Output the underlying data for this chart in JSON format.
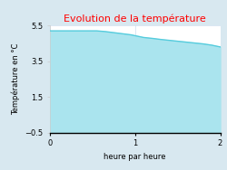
{
  "title": "Evolution de la température",
  "xlabel": "heure par heure",
  "ylabel": "Température en °C",
  "xlim": [
    0,
    2
  ],
  "ylim": [
    -0.5,
    5.5
  ],
  "xticks": [
    0,
    1,
    2
  ],
  "yticks": [
    -0.5,
    1.5,
    3.5,
    5.5
  ],
  "title_color": "#ff0000",
  "line_color": "#55ccdd",
  "fill_color": "#aae4ee",
  "background_color": "#d8e8f0",
  "plot_bg_color": "#ffffff",
  "x_data": [
    0,
    0.55,
    0.6,
    0.65,
    0.7,
    0.75,
    0.8,
    0.85,
    0.9,
    0.95,
    1.0,
    1.05,
    1.1,
    1.2,
    1.3,
    1.4,
    1.5,
    1.6,
    1.7,
    1.8,
    1.9,
    2.0
  ],
  "y_data": [
    5.2,
    5.2,
    5.18,
    5.16,
    5.13,
    5.1,
    5.07,
    5.04,
    5.01,
    4.98,
    4.93,
    4.88,
    4.83,
    4.78,
    4.72,
    4.67,
    4.62,
    4.57,
    4.52,
    4.47,
    4.4,
    4.3
  ],
  "fill_baseline": -0.5,
  "title_fontsize": 8,
  "label_fontsize": 6,
  "tick_fontsize": 6,
  "grid_color": "#ccddee",
  "line_width": 1.0
}
